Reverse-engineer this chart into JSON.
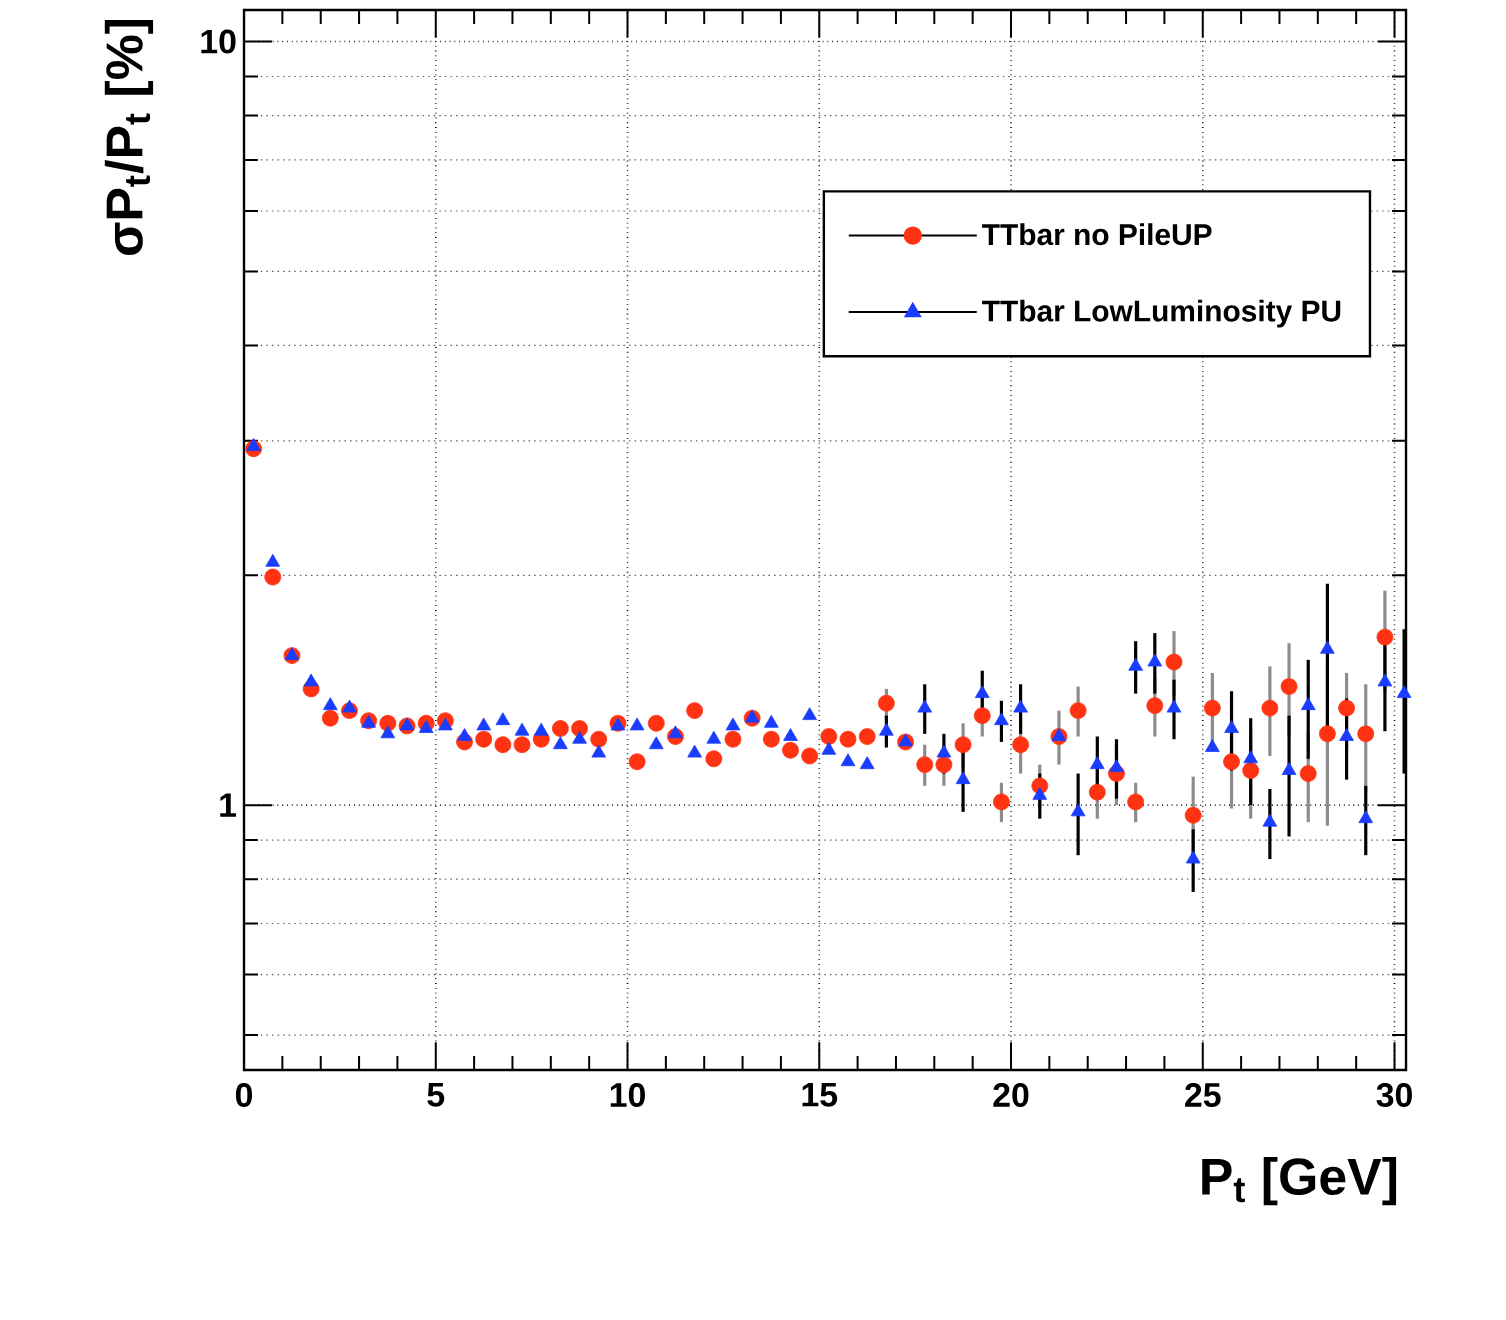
{
  "chart_data": {
    "type": "scatter",
    "xlabel": "P$_{t}$ [GeV]",
    "ylabel": "σP$_{t}$/P$_{t}$ [%]",
    "x": [
      0.25,
      0.75,
      1.25,
      1.75,
      2.25,
      2.75,
      3.25,
      3.75,
      4.25,
      4.75,
      5.25,
      5.75,
      6.25,
      6.75,
      7.25,
      7.75,
      8.25,
      8.75,
      9.25,
      9.75,
      10.25,
      10.75,
      11.25,
      11.75,
      12.25,
      12.75,
      13.25,
      13.75,
      14.25,
      14.75,
      15.25,
      15.75,
      16.25,
      16.75,
      17.25,
      17.75,
      18.25,
      18.75,
      19.25,
      19.75,
      20.25,
      20.75,
      21.25,
      21.75,
      22.25,
      22.75,
      23.25,
      23.75,
      24.25,
      24.75,
      25.25,
      25.75,
      26.25,
      26.75,
      27.25,
      27.75,
      28.25,
      28.75,
      29.25,
      29.75,
      30.25
    ],
    "series": [
      {
        "name": "TTbar no PileUP",
        "color": "#ff3311",
        "marker": "circle",
        "values": [
          2.93,
          1.99,
          1.57,
          1.42,
          1.3,
          1.33,
          1.29,
          1.28,
          1.27,
          1.28,
          1.29,
          1.21,
          1.22,
          1.2,
          1.2,
          1.22,
          1.26,
          1.26,
          1.22,
          1.28,
          1.14,
          1.28,
          1.23,
          1.33,
          1.15,
          1.22,
          1.3,
          1.22,
          1.18,
          1.16,
          1.23,
          1.22,
          1.23,
          1.36,
          1.21,
          1.13,
          1.13,
          1.2,
          1.31,
          1.01,
          1.2,
          1.06,
          1.23,
          1.33,
          1.04,
          1.1,
          1.01,
          1.35,
          1.54,
          0.97,
          1.34,
          1.14,
          1.11,
          1.34,
          1.43,
          1.1,
          1.24,
          1.34,
          1.24,
          1.66,
          null
        ],
        "errors": [
          null,
          null,
          null,
          null,
          null,
          null,
          null,
          null,
          null,
          null,
          null,
          null,
          null,
          null,
          null,
          null,
          null,
          null,
          null,
          null,
          null,
          null,
          null,
          null,
          null,
          null,
          null,
          null,
          null,
          null,
          null,
          null,
          null,
          0.06,
          null,
          0.07,
          0.07,
          0.08,
          0.08,
          0.06,
          0.1,
          0.07,
          0.1,
          0.1,
          0.08,
          0.1,
          0.06,
          0.12,
          0.15,
          0.12,
          0.15,
          0.15,
          0.15,
          0.18,
          0.2,
          0.15,
          0.3,
          0.15,
          0.2,
          0.25,
          null
        ]
      },
      {
        "name": "TTbar LowLuminosity PU",
        "color": "#1a3cff",
        "marker": "triangle",
        "values": [
          2.95,
          2.08,
          1.57,
          1.45,
          1.35,
          1.34,
          1.28,
          1.24,
          1.27,
          1.26,
          1.27,
          1.23,
          1.27,
          1.29,
          1.25,
          1.25,
          1.2,
          1.22,
          1.17,
          1.27,
          1.27,
          1.2,
          1.24,
          1.17,
          1.22,
          1.27,
          1.3,
          1.28,
          1.23,
          1.31,
          1.18,
          1.14,
          1.13,
          1.25,
          1.21,
          1.34,
          1.17,
          1.08,
          1.4,
          1.29,
          1.34,
          1.03,
          1.23,
          0.98,
          1.13,
          1.12,
          1.52,
          1.54,
          1.34,
          0.85,
          1.19,
          1.26,
          1.15,
          0.95,
          1.11,
          1.35,
          1.6,
          1.23,
          0.96,
          1.45,
          1.4
        ],
        "errors": [
          null,
          null,
          null,
          null,
          null,
          null,
          null,
          null,
          null,
          null,
          null,
          null,
          null,
          null,
          null,
          null,
          null,
          null,
          null,
          null,
          null,
          null,
          null,
          null,
          null,
          null,
          null,
          null,
          null,
          null,
          null,
          null,
          null,
          0.06,
          null,
          0.1,
          0.07,
          0.1,
          0.1,
          0.08,
          0.1,
          0.07,
          null,
          0.12,
          0.1,
          0.1,
          0.12,
          0.14,
          0.12,
          0.08,
          null,
          0.15,
          0.15,
          0.1,
          0.2,
          0.2,
          0.35,
          0.15,
          0.1,
          0.2,
          0.3
        ]
      }
    ],
    "xlim": [
      0,
      30.3
    ],
    "ylim": [
      0.45,
      11
    ],
    "xticks": [
      0,
      {
        "value": 1,
        "label": null
      },
      {
        "value": 2,
        "label": null
      },
      {
        "value": 3,
        "label": null
      },
      {
        "value": 4,
        "label": null
      },
      5,
      {
        "value": 6,
        "label": null
      },
      {
        "value": 7,
        "label": null
      },
      {
        "value": 8,
        "label": null
      },
      {
        "value": 9,
        "label": null
      },
      10,
      {
        "value": 11,
        "label": null
      },
      {
        "value": 12,
        "label": null
      },
      {
        "value": 13,
        "label": null
      },
      {
        "value": 14,
        "label": null
      },
      15,
      {
        "value": 16,
        "label": null
      },
      {
        "value": 17,
        "label": null
      },
      {
        "value": 18,
        "label": null
      },
      {
        "value": 19,
        "label": null
      },
      20,
      {
        "value": 21,
        "label": null
      },
      {
        "value": 22,
        "label": null
      },
      {
        "value": 23,
        "label": null
      },
      {
        "value": 24,
        "label": null
      },
      25,
      {
        "value": 26,
        "label": null
      },
      {
        "value": 27,
        "label": null
      },
      {
        "value": 28,
        "label": null
      },
      {
        "value": 29,
        "label": null
      },
      30
    ],
    "yticks": [
      {
        "value": 0.5,
        "label": null
      },
      {
        "value": 0.6,
        "label": null
      },
      {
        "value": 0.7,
        "label": null
      },
      {
        "value": 0.8,
        "label": null
      },
      {
        "value": 0.9,
        "label": null
      },
      1,
      {
        "value": 2,
        "label": null
      },
      {
        "value": 3,
        "label": null
      },
      {
        "value": 4,
        "label": null
      },
      {
        "value": 5,
        "label": null
      },
      {
        "value": 6,
        "label": null
      },
      {
        "value": 7,
        "label": null
      },
      {
        "value": 8,
        "label": null
      },
      {
        "value": 9,
        "label": null
      },
      10
    ],
    "log": "y",
    "grid": true,
    "legend": "top right"
  }
}
